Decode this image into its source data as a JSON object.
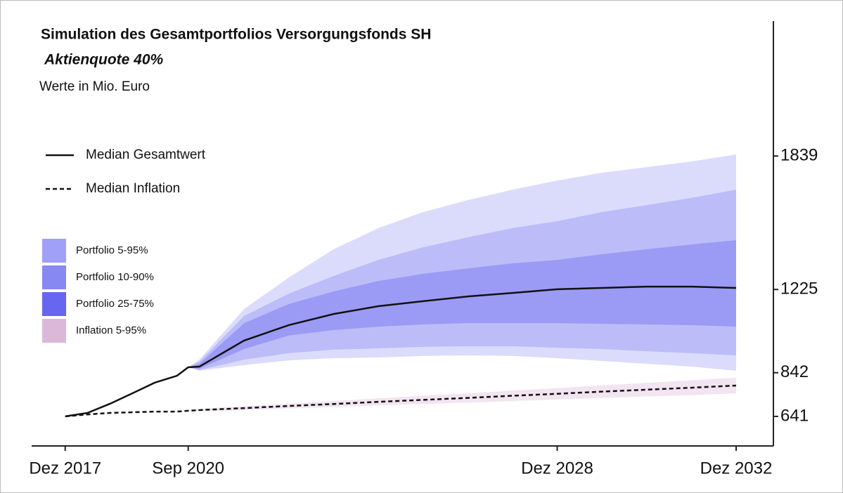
{
  "chart_data": {
    "type": "fan",
    "title": "Simulation des Gesamtportfolios Versorgungsfonds SH",
    "subtitle": "Aktienquote 40%",
    "unit_note": "Werte in Mio. Euro",
    "x": [
      "2017-12",
      "2018-06",
      "2018-12",
      "2019-06",
      "2019-12",
      "2020-06",
      "2020-09",
      "2020-12",
      "2021-12",
      "2022-12",
      "2023-12",
      "2024-12",
      "2025-12",
      "2026-12",
      "2027-12",
      "2028-12",
      "2029-12",
      "2030-12",
      "2031-12",
      "2032-12"
    ],
    "xlim": [
      "2017-03",
      "2033-10"
    ],
    "xticks": [
      {
        "value": "2017-12",
        "label": "Dez 2017"
      },
      {
        "value": "2020-09",
        "label": "Sep 2020"
      },
      {
        "value": "2028-12",
        "label": "Dez 2028"
      },
      {
        "value": "2032-12",
        "label": "Dez 2032"
      }
    ],
    "ylim": [
      505,
      2460
    ],
    "yticks": [
      641,
      842,
      1225,
      1839
    ],
    "series": [
      {
        "name": "Portfolio  5-95%",
        "color": "#a0a0f8",
        "kind": "band",
        "lower": [
          null,
          null,
          null,
          null,
          null,
          null,
          867,
          851,
          877,
          899,
          909,
          912,
          919,
          922,
          919,
          909,
          896,
          883,
          870,
          851
        ],
        "upper": [
          null,
          null,
          null,
          null,
          null,
          null,
          867,
          902,
          1135,
          1280,
          1410,
          1507,
          1581,
          1636,
          1684,
          1726,
          1762,
          1788,
          1814,
          1846
        ]
      },
      {
        "name": "Portfolio 10-90%",
        "color": "#8888f2",
        "kind": "band",
        "lower": [
          null,
          null,
          null,
          null,
          null,
          null,
          867,
          854,
          902,
          932,
          948,
          954,
          961,
          964,
          964,
          957,
          951,
          941,
          932,
          922
        ],
        "upper": [
          null,
          null,
          null,
          null,
          null,
          null,
          867,
          893,
          1103,
          1206,
          1287,
          1361,
          1419,
          1465,
          1507,
          1539,
          1581,
          1613,
          1646,
          1684
        ]
      },
      {
        "name": "Portfolio 25-75%",
        "color": "#6666f0",
        "kind": "band",
        "lower": [
          null,
          null,
          null,
          null,
          null,
          null,
          867,
          860,
          951,
          1013,
          1038,
          1054,
          1064,
          1070,
          1070,
          1070,
          1067,
          1064,
          1061,
          1054
        ],
        "upper": [
          null,
          null,
          null,
          null,
          null,
          null,
          867,
          883,
          1070,
          1158,
          1216,
          1264,
          1297,
          1322,
          1345,
          1361,
          1387,
          1410,
          1432,
          1452
        ]
      },
      {
        "name": "Inflation  5-95%",
        "color": "#dcb8d8",
        "kind": "band",
        "lower": [
          null,
          null,
          null,
          null,
          null,
          null,
          664,
          664,
          670,
          678,
          684,
          692,
          698,
          705,
          712,
          719,
          726,
          733,
          739,
          747
        ],
        "upper": [
          null,
          null,
          null,
          null,
          null,
          null,
          670,
          676,
          688,
          700,
          712,
          724,
          736,
          747,
          760,
          771,
          784,
          795,
          807,
          819
        ]
      },
      {
        "name": "Median Gesamtwert",
        "color": "#111111",
        "kind": "line",
        "dash": false,
        "values": [
          641,
          657,
          699,
          747,
          796,
          828,
          867,
          870,
          990,
          1061,
          1112,
          1148,
          1171,
          1193,
          1209,
          1226,
          1232,
          1238,
          1238,
          1232
        ]
      },
      {
        "name": "Median Inflation",
        "color": "#111111",
        "kind": "line",
        "dash": true,
        "values": [
          641,
          650,
          657,
          660,
          663,
          663,
          667,
          670,
          679,
          689,
          698,
          708,
          717,
          726,
          736,
          745,
          755,
          764,
          773,
          783
        ]
      }
    ]
  }
}
